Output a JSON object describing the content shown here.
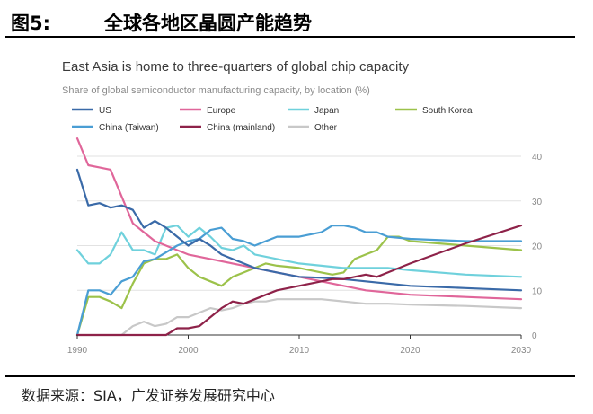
{
  "figure": {
    "label": "图5:",
    "title": "全球各地区晶圆产能趋势",
    "source": "数据来源：SIA，广发证券发展研究中心"
  },
  "chart_data": {
    "type": "line",
    "title": "East Asia is home to three-quarters of global chip capacity",
    "subtitle": "Share of global semiconductor manufacturing capacity, by location (%)",
    "xlim": [
      1990,
      2030
    ],
    "ylim": [
      0,
      40
    ],
    "x_ticks": [
      1990,
      2000,
      2010,
      2020,
      2030
    ],
    "y_ticks": [
      0,
      10,
      20,
      30,
      40
    ],
    "grid": true,
    "series": [
      {
        "name": "US",
        "color": "#3a6aa8",
        "points": [
          [
            1990,
            37
          ],
          [
            1991,
            29
          ],
          [
            1992,
            29.5
          ],
          [
            1993,
            28.5
          ],
          [
            1994,
            29
          ],
          [
            1995,
            28
          ],
          [
            1996,
            24
          ],
          [
            1997,
            25.5
          ],
          [
            1998,
            24
          ],
          [
            1999,
            22
          ],
          [
            2000,
            20
          ],
          [
            2001,
            21.5
          ],
          [
            2002,
            20
          ],
          [
            2003,
            18
          ],
          [
            2004,
            17
          ],
          [
            2005,
            16
          ],
          [
            2006,
            15
          ],
          [
            2008,
            14
          ],
          [
            2010,
            13
          ],
          [
            2012,
            12.8
          ],
          [
            2014,
            12.5
          ],
          [
            2016,
            12
          ],
          [
            2018,
            11.5
          ],
          [
            2020,
            11
          ],
          [
            2025,
            10.5
          ],
          [
            2030,
            10
          ]
        ]
      },
      {
        "name": "Europe",
        "color": "#e0669a",
        "points": [
          [
            1990,
            44
          ],
          [
            1991,
            38
          ],
          [
            1992,
            37.5
          ],
          [
            1993,
            37
          ],
          [
            1994,
            31
          ],
          [
            1995,
            25
          ],
          [
            1996,
            23
          ],
          [
            1997,
            21
          ],
          [
            1998,
            20
          ],
          [
            1999,
            19
          ],
          [
            2000,
            18
          ],
          [
            2002,
            17
          ],
          [
            2004,
            16
          ],
          [
            2006,
            15
          ],
          [
            2008,
            14
          ],
          [
            2010,
            13
          ],
          [
            2012,
            12
          ],
          [
            2014,
            11
          ],
          [
            2016,
            10
          ],
          [
            2018,
            9.5
          ],
          [
            2020,
            9
          ],
          [
            2025,
            8.5
          ],
          [
            2030,
            8
          ]
        ]
      },
      {
        "name": "Japan",
        "color": "#6fd1dc",
        "points": [
          [
            1990,
            19
          ],
          [
            1991,
            16
          ],
          [
            1992,
            16
          ],
          [
            1993,
            18
          ],
          [
            1994,
            23
          ],
          [
            1995,
            19
          ],
          [
            1996,
            19
          ],
          [
            1997,
            18
          ],
          [
            1998,
            24
          ],
          [
            1999,
            24.5
          ],
          [
            2000,
            22
          ],
          [
            2001,
            24
          ],
          [
            2002,
            22
          ],
          [
            2003,
            19.5
          ],
          [
            2004,
            19
          ],
          [
            2005,
            20
          ],
          [
            2006,
            18
          ],
          [
            2008,
            17
          ],
          [
            2010,
            16
          ],
          [
            2012,
            15.5
          ],
          [
            2014,
            15
          ],
          [
            2016,
            15
          ],
          [
            2018,
            15
          ],
          [
            2020,
            14.5
          ],
          [
            2025,
            13.5
          ],
          [
            2030,
            13
          ]
        ]
      },
      {
        "name": "South Korea",
        "color": "#9cc24a",
        "points": [
          [
            1990,
            0
          ],
          [
            1991,
            8.5
          ],
          [
            1992,
            8.5
          ],
          [
            1993,
            7.5
          ],
          [
            1994,
            6
          ],
          [
            1995,
            11.5
          ],
          [
            1996,
            16
          ],
          [
            1997,
            17
          ],
          [
            1998,
            17
          ],
          [
            1999,
            18
          ],
          [
            2000,
            15
          ],
          [
            2001,
            13
          ],
          [
            2002,
            12
          ],
          [
            2003,
            11
          ],
          [
            2004,
            13
          ],
          [
            2005,
            14
          ],
          [
            2006,
            15
          ],
          [
            2007,
            16
          ],
          [
            2008,
            15.5
          ],
          [
            2010,
            15
          ],
          [
            2012,
            14
          ],
          [
            2013,
            13.5
          ],
          [
            2014,
            14
          ],
          [
            2015,
            17
          ],
          [
            2016,
            18
          ],
          [
            2017,
            19
          ],
          [
            2018,
            22
          ],
          [
            2019,
            22
          ],
          [
            2020,
            21
          ],
          [
            2025,
            20
          ],
          [
            2030,
            19
          ]
        ]
      },
      {
        "name": "China (Taiwan)",
        "color": "#4a9ed4",
        "points": [
          [
            1990,
            0
          ],
          [
            1991,
            10
          ],
          [
            1992,
            10
          ],
          [
            1993,
            9
          ],
          [
            1994,
            12
          ],
          [
            1995,
            13
          ],
          [
            1996,
            16.5
          ],
          [
            1997,
            17
          ],
          [
            1998,
            18.5
          ],
          [
            1999,
            20
          ],
          [
            2000,
            21
          ],
          [
            2001,
            21.5
          ],
          [
            2002,
            23.5
          ],
          [
            2003,
            24
          ],
          [
            2004,
            21.5
          ],
          [
            2005,
            21
          ],
          [
            2006,
            20
          ],
          [
            2007,
            21
          ],
          [
            2008,
            22
          ],
          [
            2009,
            22
          ],
          [
            2010,
            22
          ],
          [
            2011,
            22.5
          ],
          [
            2012,
            23
          ],
          [
            2013,
            24.5
          ],
          [
            2014,
            24.5
          ],
          [
            2015,
            24
          ],
          [
            2016,
            23
          ],
          [
            2017,
            23
          ],
          [
            2018,
            22
          ],
          [
            2020,
            21.5
          ],
          [
            2025,
            21
          ],
          [
            2030,
            21
          ]
        ]
      },
      {
        "name": "China (mainland)",
        "color": "#8e2249",
        "points": [
          [
            1990,
            0
          ],
          [
            1994,
            0
          ],
          [
            1996,
            0
          ],
          [
            1998,
            0
          ],
          [
            1999,
            1.5
          ],
          [
            2000,
            1.5
          ],
          [
            2001,
            2
          ],
          [
            2002,
            4
          ],
          [
            2003,
            6
          ],
          [
            2004,
            7.5
          ],
          [
            2005,
            7
          ],
          [
            2006,
            8
          ],
          [
            2007,
            9
          ],
          [
            2008,
            10
          ],
          [
            2010,
            11
          ],
          [
            2011,
            11.5
          ],
          [
            2012,
            12
          ],
          [
            2013,
            12.5
          ],
          [
            2014,
            12.5
          ],
          [
            2015,
            13
          ],
          [
            2016,
            13.5
          ],
          [
            2017,
            13
          ],
          [
            2018,
            14
          ],
          [
            2019,
            15
          ],
          [
            2020,
            16
          ],
          [
            2025,
            20.5
          ],
          [
            2030,
            24.5
          ]
        ]
      },
      {
        "name": "Other",
        "color": "#c8c8c8",
        "points": [
          [
            1990,
            0
          ],
          [
            1994,
            0
          ],
          [
            1995,
            2
          ],
          [
            1996,
            3
          ],
          [
            1997,
            2
          ],
          [
            1998,
            2.5
          ],
          [
            1999,
            4
          ],
          [
            2000,
            4
          ],
          [
            2001,
            5
          ],
          [
            2002,
            6
          ],
          [
            2003,
            5.5
          ],
          [
            2004,
            6
          ],
          [
            2005,
            7
          ],
          [
            2006,
            7.5
          ],
          [
            2007,
            7.5
          ],
          [
            2008,
            8
          ],
          [
            2010,
            8
          ],
          [
            2012,
            8
          ],
          [
            2014,
            7.5
          ],
          [
            2016,
            7
          ],
          [
            2018,
            7
          ],
          [
            2020,
            6.8
          ],
          [
            2025,
            6.5
          ],
          [
            2030,
            6
          ]
        ]
      }
    ]
  }
}
